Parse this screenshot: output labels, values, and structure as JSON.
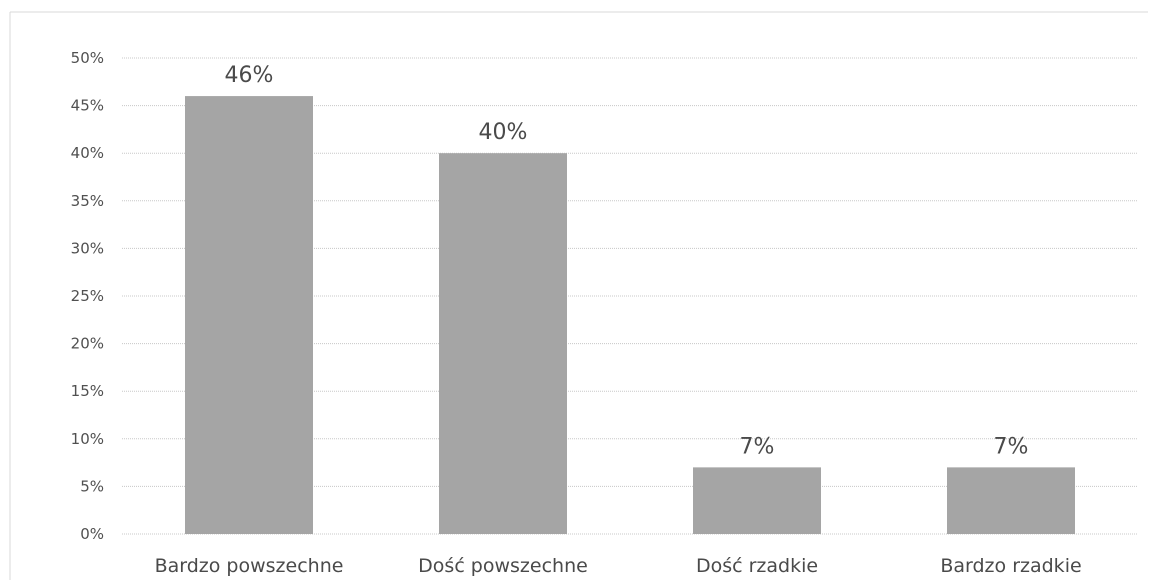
{
  "chart_data": {
    "type": "bar",
    "categories": [
      "Bardzo powszechne",
      "Dość powszechne",
      "Dość rzadkie",
      "Bardzo rzadkie"
    ],
    "values": [
      46,
      40,
      7,
      7
    ],
    "data_labels": [
      "46%",
      "40%",
      "7%",
      "7%"
    ],
    "ylim": [
      0,
      50
    ],
    "yticks": [
      0,
      5,
      10,
      15,
      20,
      25,
      30,
      35,
      40,
      45,
      50
    ],
    "ytick_labels": [
      "0%",
      "5%",
      "10%",
      "15%",
      "20%",
      "25%",
      "30%",
      "35%",
      "40%",
      "45%",
      "50%"
    ],
    "grid": true,
    "bar_color": "#a5a5a5",
    "title": "",
    "xlabel": "",
    "ylabel": ""
  }
}
